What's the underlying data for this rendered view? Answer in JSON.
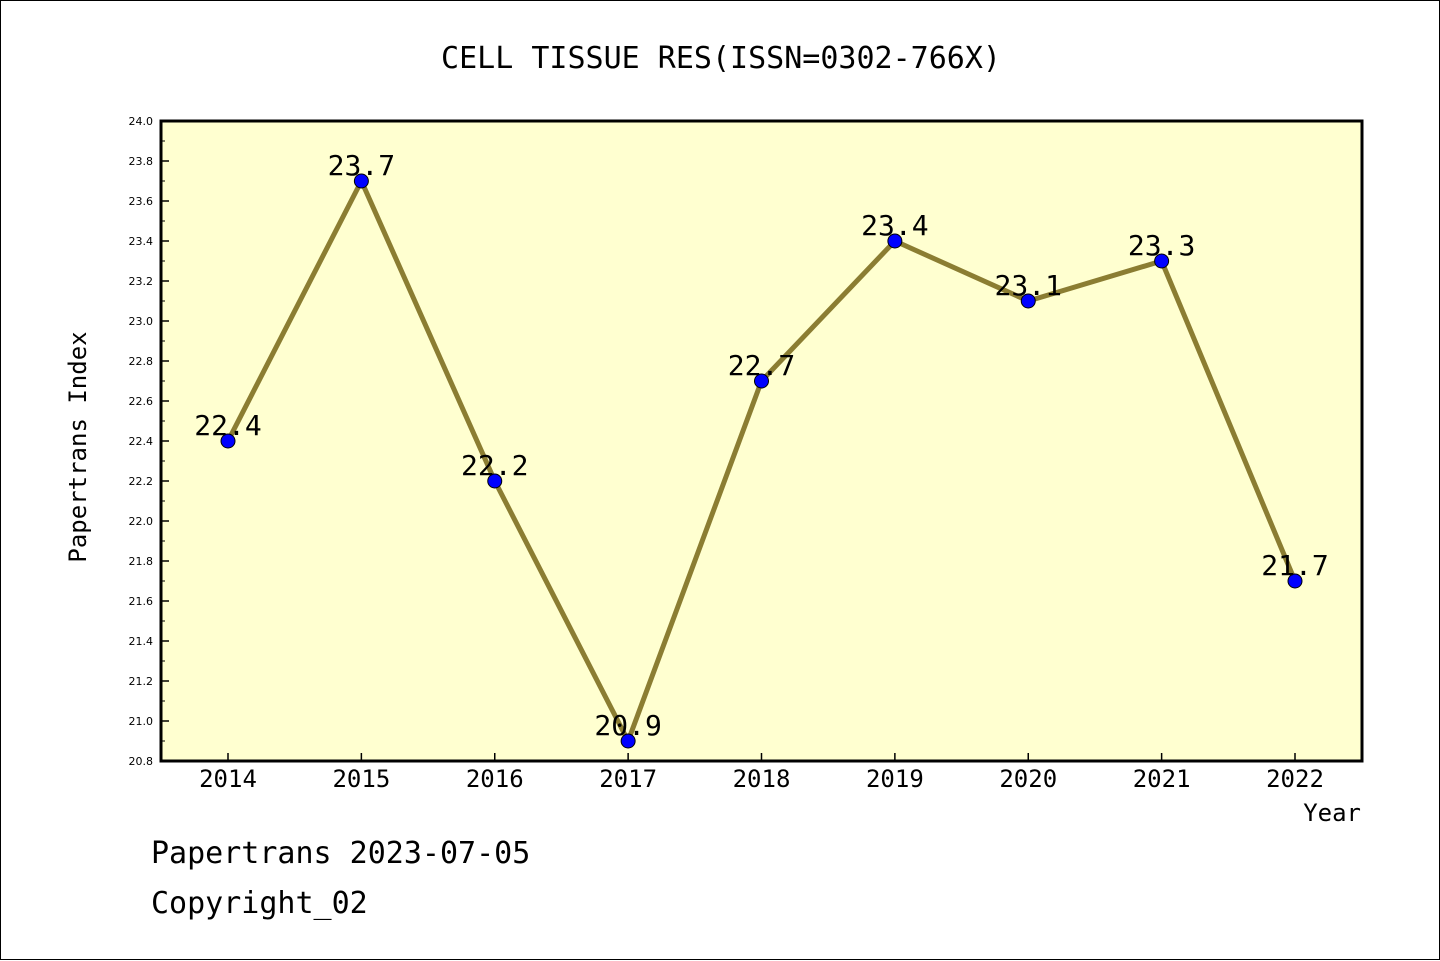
{
  "chart_data": {
    "type": "line",
    "title": "CELL TISSUE RES(ISSN=0302-766X)",
    "xlabel": "Year",
    "ylabel": "Papertrans Index",
    "categories": [
      "2014",
      "2015",
      "2016",
      "2017",
      "2018",
      "2019",
      "2020",
      "2021",
      "2022"
    ],
    "values": [
      22.4,
      23.7,
      22.2,
      20.9,
      22.7,
      23.4,
      23.1,
      23.3,
      21.7
    ],
    "value_labels": [
      "22.4",
      "23.7",
      "22.2",
      "20.9",
      "22.7",
      "23.4",
      "23.1",
      "23.3",
      "21.7"
    ],
    "ylim": [
      20.8,
      24.0
    ],
    "yticks": [
      "20.8",
      "21.0",
      "21.2",
      "21.4",
      "21.6",
      "21.8",
      "22.0",
      "22.2",
      "22.4",
      "22.6",
      "22.8",
      "23.0",
      "23.2",
      "23.4",
      "23.6",
      "23.8",
      "24.0"
    ],
    "grid": false,
    "legend": "none",
    "colors": {
      "plot_background": "#ffffd0",
      "line": "#8b7d32",
      "marker": "#0000ff",
      "axis": "#000000"
    }
  },
  "footer": {
    "line1": "Papertrans 2023-07-05",
    "line2": "Copyright_02"
  }
}
